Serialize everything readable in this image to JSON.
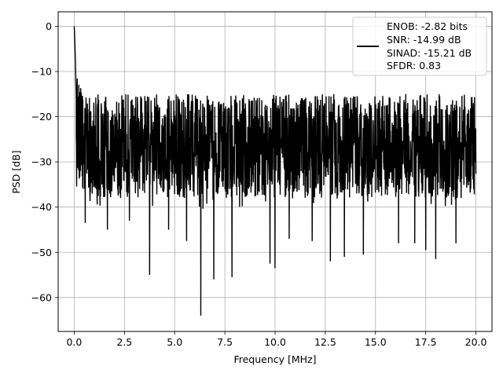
{
  "chart_data": {
    "type": "line",
    "title": "",
    "xlabel": "Frequency [MHz]",
    "ylabel": "PSD [dB]",
    "xlim": [
      -0.8,
      20.8
    ],
    "ylim": [
      -67.5,
      3.2
    ],
    "xticks": [
      0.0,
      2.5,
      5.0,
      7.5,
      10.0,
      12.5,
      15.0,
      17.5,
      20.0
    ],
    "xtick_labels": [
      "0.0",
      "2.5",
      "5.0",
      "7.5",
      "10.0",
      "12.5",
      "15.0",
      "17.5",
      "20.0"
    ],
    "yticks": [
      0,
      -10,
      -20,
      -30,
      -40,
      -50,
      -60
    ],
    "ytick_labels": [
      "0",
      "−10",
      "−20",
      "−30",
      "−40",
      "−50",
      "−60"
    ],
    "grid": true,
    "legend_position": "top-right",
    "legend": [
      "ENOB: -2.82 bits",
      "SNR: -14.99 dB",
      "SINAD: -15.21 dB",
      "SFDR: 0.83"
    ],
    "series": [
      {
        "color": "#000000",
        "x_range": [
          0,
          20
        ],
        "points": 2000,
        "initial_peak": [
          [
            0.0,
            0.0
          ],
          [
            0.02,
            -2.0
          ],
          [
            0.04,
            -5.0
          ],
          [
            0.06,
            -8.0
          ],
          [
            0.08,
            -12.0
          ],
          [
            0.1,
            -16.0
          ]
        ],
        "noise_floor_db": -27,
        "upper_envelope_db": -15,
        "lower_envelope_db": -38,
        "deep_notches": [
          [
            0.55,
            -43.5
          ],
          [
            1.65,
            -45.0
          ],
          [
            2.75,
            -43.0
          ],
          [
            3.75,
            -55.0
          ],
          [
            4.7,
            -45.0
          ],
          [
            5.6,
            -47.5
          ],
          [
            6.3,
            -64.0
          ],
          [
            6.95,
            -56.0
          ],
          [
            7.85,
            -55.5
          ],
          [
            9.75,
            -52.5
          ],
          [
            10.0,
            -53.5
          ],
          [
            10.7,
            -47.0
          ],
          [
            11.85,
            -47.5
          ],
          [
            12.75,
            -52.0
          ],
          [
            13.45,
            -51.0
          ],
          [
            14.4,
            -50.5
          ],
          [
            16.15,
            -48.0
          ],
          [
            16.95,
            -48.0
          ],
          [
            17.5,
            -49.5
          ],
          [
            18.0,
            -51.5
          ],
          [
            19.0,
            -48.0
          ]
        ]
      }
    ]
  }
}
